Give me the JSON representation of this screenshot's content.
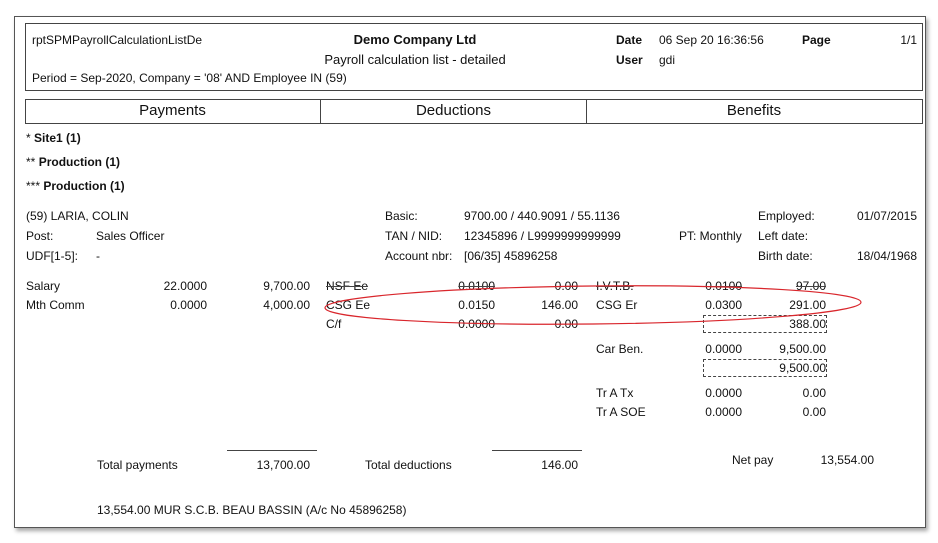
{
  "header": {
    "report_id": "rptSPMPayrollCalculationListDe",
    "company": "Demo Company Ltd",
    "subtitle": "Payroll calculation list - detailed",
    "filter": "Period = Sep-2020, Company = '08' AND Employee IN (59)",
    "date_label": "Date",
    "date_value": "06 Sep 20 16:36:56",
    "page_label": "Page",
    "page_value": "1/1",
    "user_label": "User",
    "user_value": "gdi"
  },
  "columns": {
    "payments": "Payments",
    "deductions": "Deductions",
    "benefits": "Benefits"
  },
  "groups": {
    "g1_prefix": "* ",
    "g1": "Site1 (1)",
    "g2_prefix": "** ",
    "g2": "Production (1)",
    "g3_prefix": "*** ",
    "g3": "Production (1)"
  },
  "employee": {
    "name": "(59) LARIA, COLIN",
    "post_label": "Post:",
    "post": "Sales Officer",
    "udf_label": "UDF[1-5]:",
    "udf": "-",
    "basic_label": "Basic:",
    "basic": "9700.00 / 440.9091 / 55.1136",
    "tan_label": "TAN / NID:",
    "tan": "12345896 / L9999999999999",
    "pt": "PT: Monthly",
    "account_label": "Account nbr:",
    "account": "[06/35]  45896258",
    "employed_label": "Employed:",
    "employed": "01/07/2015",
    "left_label": "Left date:",
    "left": "",
    "birth_label": "Birth date:",
    "birth": "18/04/1968"
  },
  "payments": [
    {
      "name": "Salary",
      "rate": "22.0000",
      "amount": "9,700.00"
    },
    {
      "name": "Mth Comm",
      "rate": "0.0000",
      "amount": "4,000.00"
    }
  ],
  "deductions": [
    {
      "name": "NSF Ee",
      "rate": "0.0100",
      "amount": "0.00"
    },
    {
      "name": "CSG Ee",
      "rate": "0.0150",
      "amount": "146.00"
    },
    {
      "name": "C/f",
      "rate": "0.0000",
      "amount": "0.00"
    }
  ],
  "benefits": [
    {
      "name": "I.V.T.B.",
      "rate": "0.0100",
      "amount": "97.00"
    },
    {
      "name": "CSG Er",
      "rate": "0.0300",
      "amount": "291.00"
    },
    {
      "name": "",
      "rate": "",
      "amount": "388.00"
    },
    {
      "name": "Car Ben.",
      "rate": "0.0000",
      "amount": "9,500.00"
    },
    {
      "name": "",
      "rate": "",
      "amount": "9,500.00"
    },
    {
      "name": "Tr A Tx",
      "rate": "0.0000",
      "amount": "0.00"
    },
    {
      "name": "Tr A SOE",
      "rate": "0.0000",
      "amount": "0.00"
    }
  ],
  "totals": {
    "payments_label": "Total payments",
    "payments": "13,700.00",
    "deductions_label": "Total deductions",
    "deductions": "146.00",
    "net_label": "Net pay",
    "net": "13,554.00"
  },
  "bank_line": "13,554.00  MUR  S.C.B. BEAU BASSIN (A/c No 45896258)",
  "annotation_color": "#d9262c"
}
